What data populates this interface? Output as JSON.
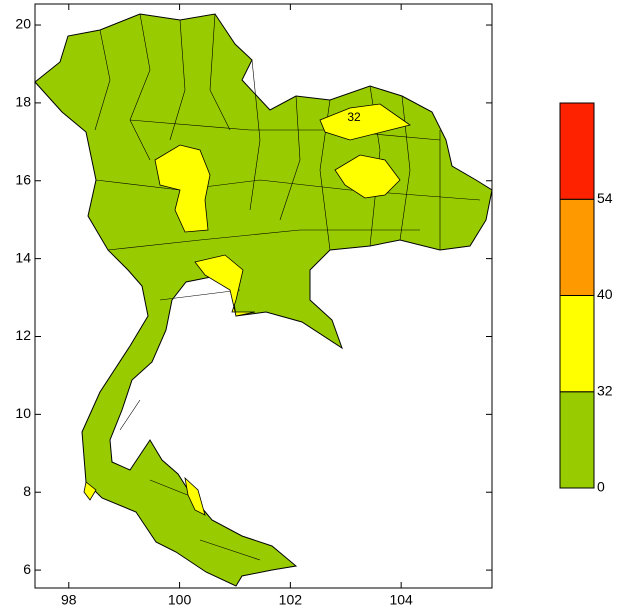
{
  "map": {
    "xlim": [
      97.39,
      105.64
    ],
    "ylim": [
      5.54,
      20.54
    ],
    "xticks": [
      98,
      100,
      102,
      104
    ],
    "yticks": [
      6,
      8,
      10,
      12,
      14,
      16,
      18,
      20
    ],
    "contour_label": "32"
  },
  "colorbar": {
    "levels": [
      0,
      32,
      40,
      54
    ],
    "colors": [
      "#99cc00",
      "#ffff00",
      "#ff9900",
      "#ff2200"
    ]
  }
}
